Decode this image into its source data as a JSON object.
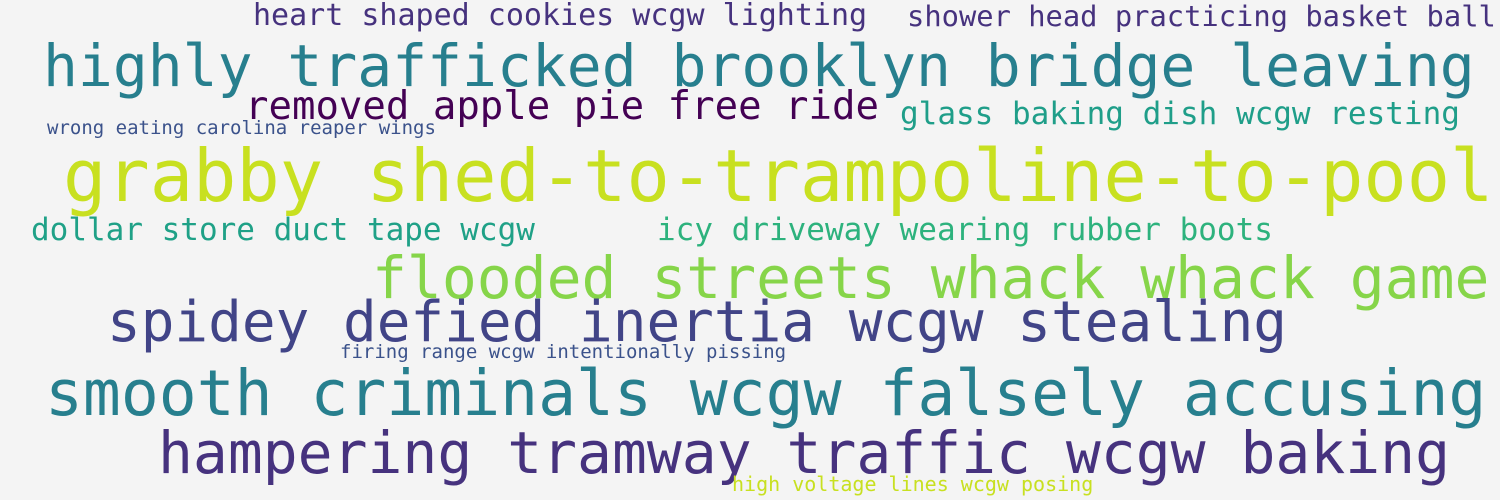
{
  "word_cloud": {
    "background": "#f4f4f4",
    "phrases": [
      {
        "text": "heart shaped cookies wcgw lighting",
        "color": "#46327e"
      },
      {
        "text": "shower head practicing basket ball",
        "color": "#46327e"
      },
      {
        "text": "highly trafficked brooklyn bridge leaving",
        "color": "#277f8e"
      },
      {
        "text": "removed apple pie free ride",
        "color": "#440154"
      },
      {
        "text": "glass baking dish wcgw resting",
        "color": "#1f9e89"
      },
      {
        "text": "wrong eating carolina reaper wings",
        "color": "#3b528b"
      },
      {
        "text": "grabby shed-to-trampoline-to-pool",
        "color": "#c8e020"
      },
      {
        "text": "dollar store duct tape wcgw",
        "color": "#1fa187"
      },
      {
        "text": "icy driveway wearing rubber boots",
        "color": "#2db27d"
      },
      {
        "text": "flooded streets whack whack game",
        "color": "#86d549"
      },
      {
        "text": "spidey defied inertia wcgw stealing",
        "color": "#414487"
      },
      {
        "text": "firing range wcgw intentionally pissing",
        "color": "#3b528b"
      },
      {
        "text": "smooth criminals wcgw falsely accusing",
        "color": "#277f8e"
      },
      {
        "text": "hampering tramway traffic wcgw baking",
        "color": "#46327e"
      },
      {
        "text": "high voltage lines wcgw posing",
        "color": "#c8e020"
      }
    ]
  }
}
